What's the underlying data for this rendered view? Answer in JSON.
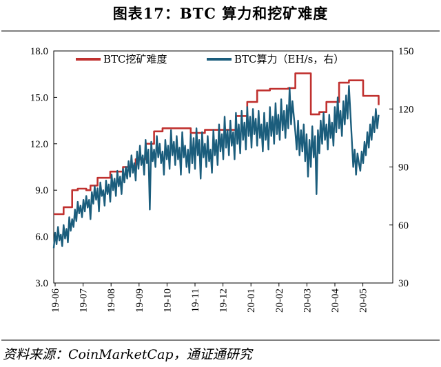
{
  "header": {
    "title": "图表17：BTC 算力和挖矿难度"
  },
  "footer": {
    "source": "资料来源：CoinMarketCap，通证通研究"
  },
  "colors": {
    "difficulty": "#c0312f",
    "hashrate": "#1b5d7c"
  },
  "chart_data": {
    "type": "line",
    "title": "图表17：BTC 算力和挖矿难度",
    "xlabel": "",
    "x_ticks": [
      "19-06",
      "19-07",
      "19-08",
      "19-09",
      "19-10",
      "19-11",
      "19-12",
      "20-01",
      "20-02",
      "20-03",
      "20-04",
      "20-05"
    ],
    "y_left": {
      "range": [
        3.0,
        18.0
      ],
      "ticks": [
        "3.0",
        "6.0",
        "9.0",
        "12.0",
        "15.0",
        "18.0"
      ]
    },
    "y_right": {
      "range": [
        30,
        150
      ],
      "ticks": [
        "30",
        "60",
        "90",
        "120",
        "150"
      ]
    },
    "x_range": [
      0,
      12.0
    ],
    "legend": {
      "placement": "top",
      "entries": [
        "BTC挖矿难度",
        "BTC算力（EH/s，右）"
      ]
    },
    "grid": false,
    "series": [
      {
        "name": "BTC挖矿难度",
        "axis": "left",
        "points": [
          [
            0.0,
            7.45
          ],
          [
            0.35,
            7.45
          ],
          [
            0.35,
            7.9
          ],
          [
            0.65,
            7.9
          ],
          [
            0.65,
            9.0
          ],
          [
            0.85,
            9.0
          ],
          [
            0.85,
            9.1
          ],
          [
            1.15,
            9.1
          ],
          [
            1.15,
            9.0
          ],
          [
            1.3,
            9.0
          ],
          [
            1.3,
            9.3
          ],
          [
            1.55,
            9.3
          ],
          [
            1.55,
            9.8
          ],
          [
            2.0,
            9.8
          ],
          [
            2.0,
            10.2
          ],
          [
            2.45,
            10.2
          ],
          [
            2.45,
            10.5
          ],
          [
            2.9,
            10.5
          ],
          [
            2.9,
            11.0
          ],
          [
            3.25,
            11.0
          ],
          [
            3.25,
            12.0
          ],
          [
            3.55,
            12.0
          ],
          [
            3.55,
            12.8
          ],
          [
            3.85,
            12.8
          ],
          [
            3.85,
            13.0
          ],
          [
            4.35,
            13.0
          ],
          [
            4.35,
            13.0
          ],
          [
            4.85,
            13.0
          ],
          [
            4.85,
            12.7
          ],
          [
            5.35,
            12.7
          ],
          [
            5.35,
            12.9
          ],
          [
            5.85,
            12.9
          ],
          [
            5.85,
            12.9
          ],
          [
            6.45,
            12.9
          ],
          [
            6.45,
            13.8
          ],
          [
            6.85,
            13.8
          ],
          [
            6.85,
            14.7
          ],
          [
            7.2,
            14.7
          ],
          [
            7.2,
            15.45
          ],
          [
            7.65,
            15.45
          ],
          [
            7.65,
            15.55
          ],
          [
            8.3,
            15.55
          ],
          [
            8.3,
            15.6
          ],
          [
            8.55,
            15.6
          ],
          [
            8.55,
            16.55
          ],
          [
            9.1,
            16.55
          ],
          [
            9.1,
            13.9
          ],
          [
            9.4,
            13.9
          ],
          [
            9.4,
            14.05
          ],
          [
            9.65,
            14.05
          ],
          [
            9.65,
            14.7
          ],
          [
            10.1,
            14.7
          ],
          [
            10.1,
            15.95
          ],
          [
            10.45,
            15.95
          ],
          [
            10.45,
            16.1
          ],
          [
            10.95,
            16.1
          ],
          [
            10.95,
            15.1
          ],
          [
            11.5,
            15.1
          ],
          [
            11.5,
            14.5
          ]
        ]
      },
      {
        "name": "BTC算力（EH/s，右）",
        "axis": "right",
        "points": [
          [
            0.0,
            48
          ],
          [
            0.05,
            56
          ],
          [
            0.1,
            50
          ],
          [
            0.15,
            59
          ],
          [
            0.2,
            52
          ],
          [
            0.25,
            55
          ],
          [
            0.3,
            49
          ],
          [
            0.35,
            60
          ],
          [
            0.4,
            53
          ],
          [
            0.45,
            58
          ],
          [
            0.5,
            51
          ],
          [
            0.55,
            64
          ],
          [
            0.6,
            57
          ],
          [
            0.65,
            63
          ],
          [
            0.7,
            59
          ],
          [
            0.75,
            68
          ],
          [
            0.8,
            62
          ],
          [
            0.85,
            72
          ],
          [
            0.9,
            66
          ],
          [
            0.95,
            70
          ],
          [
            1.0,
            64
          ],
          [
            1.05,
            73
          ],
          [
            1.1,
            67
          ],
          [
            1.15,
            75
          ],
          [
            1.2,
            69
          ],
          [
            1.25,
            73
          ],
          [
            1.3,
            63
          ],
          [
            1.35,
            77
          ],
          [
            1.4,
            71
          ],
          [
            1.45,
            80
          ],
          [
            1.5,
            73
          ],
          [
            1.55,
            79
          ],
          [
            1.6,
            67
          ],
          [
            1.65,
            82
          ],
          [
            1.7,
            75
          ],
          [
            1.75,
            78
          ],
          [
            1.8,
            70
          ],
          [
            1.85,
            83
          ],
          [
            1.9,
            76
          ],
          [
            1.95,
            81
          ],
          [
            2.0,
            72
          ],
          [
            2.05,
            86
          ],
          [
            2.1,
            78
          ],
          [
            2.15,
            84
          ],
          [
            2.2,
            75
          ],
          [
            2.25,
            88
          ],
          [
            2.3,
            80
          ],
          [
            2.35,
            85
          ],
          [
            2.4,
            76
          ],
          [
            2.45,
            89
          ],
          [
            2.5,
            82
          ],
          [
            2.55,
            90
          ],
          [
            2.6,
            84
          ],
          [
            2.65,
            93
          ],
          [
            2.7,
            85
          ],
          [
            2.75,
            96
          ],
          [
            2.8,
            87
          ],
          [
            2.85,
            92
          ],
          [
            2.9,
            83
          ],
          [
            2.95,
            98
          ],
          [
            3.0,
            89
          ],
          [
            3.05,
            101
          ],
          [
            3.1,
            91
          ],
          [
            3.15,
            96
          ],
          [
            3.2,
            86
          ],
          [
            3.25,
            104
          ],
          [
            3.3,
            92
          ],
          [
            3.35,
            99
          ],
          [
            3.4,
            68
          ],
          [
            3.45,
            103
          ],
          [
            3.5,
            93
          ],
          [
            3.55,
            99
          ],
          [
            3.6,
            90
          ],
          [
            3.65,
            106
          ],
          [
            3.7,
            95
          ],
          [
            3.75,
            102
          ],
          [
            3.8,
            92
          ],
          [
            3.85,
            98
          ],
          [
            3.9,
            86
          ],
          [
            3.95,
            104
          ],
          [
            4.0,
            94
          ],
          [
            4.05,
            101
          ],
          [
            4.1,
            89
          ],
          [
            4.15,
            109
          ],
          [
            4.2,
            96
          ],
          [
            4.25,
            103
          ],
          [
            4.3,
            91
          ],
          [
            4.35,
            106
          ],
          [
            4.4,
            94
          ],
          [
            4.45,
            100
          ],
          [
            4.5,
            86
          ],
          [
            4.55,
            108
          ],
          [
            4.6,
            95
          ],
          [
            4.65,
            101
          ],
          [
            4.7,
            90
          ],
          [
            4.75,
            99
          ],
          [
            4.8,
            87
          ],
          [
            4.85,
            107
          ],
          [
            4.9,
            92
          ],
          [
            4.95,
            105
          ],
          [
            5.0,
            89
          ],
          [
            5.05,
            110
          ],
          [
            5.1,
            96
          ],
          [
            5.15,
            104
          ],
          [
            5.2,
            84
          ],
          [
            5.25,
            108
          ],
          [
            5.3,
            95
          ],
          [
            5.35,
            102
          ],
          [
            5.4,
            90
          ],
          [
            5.45,
            106
          ],
          [
            5.5,
            93
          ],
          [
            5.55,
            99
          ],
          [
            5.6,
            87
          ],
          [
            5.65,
            109
          ],
          [
            5.7,
            96
          ],
          [
            5.75,
            104
          ],
          [
            5.8,
            91
          ],
          [
            5.85,
            112
          ],
          [
            5.9,
            98
          ],
          [
            5.95,
            107
          ],
          [
            6.0,
            94
          ],
          [
            6.05,
            116
          ],
          [
            6.1,
            100
          ],
          [
            6.15,
            109
          ],
          [
            6.2,
            96
          ],
          [
            6.25,
            114
          ],
          [
            6.3,
            101
          ],
          [
            6.35,
            108
          ],
          [
            6.4,
            94
          ],
          [
            6.45,
            118
          ],
          [
            6.5,
            102
          ],
          [
            6.55,
            112
          ],
          [
            6.6,
            97
          ],
          [
            6.65,
            119
          ],
          [
            6.7,
            104
          ],
          [
            6.75,
            113
          ],
          [
            6.8,
            99
          ],
          [
            6.85,
            121
          ],
          [
            6.9,
            106
          ],
          [
            6.95,
            116
          ],
          [
            7.0,
            100
          ],
          [
            7.05,
            120
          ],
          [
            7.1,
            107
          ],
          [
            7.15,
            115
          ],
          [
            7.2,
            101
          ],
          [
            7.25,
            119
          ],
          [
            7.3,
            105
          ],
          [
            7.35,
            112
          ],
          [
            7.4,
            98
          ],
          [
            7.45,
            118
          ],
          [
            7.5,
            104
          ],
          [
            7.55,
            113
          ],
          [
            7.6,
            99
          ],
          [
            7.65,
            121
          ],
          [
            7.7,
            106
          ],
          [
            7.75,
            116
          ],
          [
            7.8,
            102
          ],
          [
            7.85,
            123
          ],
          [
            7.9,
            107
          ],
          [
            7.95,
            117
          ],
          [
            8.0,
            104
          ],
          [
            8.05,
            125
          ],
          [
            8.1,
            109
          ],
          [
            8.15,
            119
          ],
          [
            8.2,
            105
          ],
          [
            8.25,
            122
          ],
          [
            8.3,
            110
          ],
          [
            8.35,
            131
          ],
          [
            8.4,
            112
          ],
          [
            8.45,
            124
          ],
          [
            8.5,
            116
          ],
          [
            8.55,
            108
          ],
          [
            8.6,
            99
          ],
          [
            8.65,
            114
          ],
          [
            8.7,
            96
          ],
          [
            8.75,
            109
          ],
          [
            8.8,
            98
          ],
          [
            8.85,
            112
          ],
          [
            8.9,
            93
          ],
          [
            8.95,
            107
          ],
          [
            9.0,
            85
          ],
          [
            9.05,
            104
          ],
          [
            9.1,
            90
          ],
          [
            9.15,
            111
          ],
          [
            9.2,
            95
          ],
          [
            9.25,
            106
          ],
          [
            9.3,
            76
          ],
          [
            9.35,
            109
          ],
          [
            9.4,
            97
          ],
          [
            9.45,
            114
          ],
          [
            9.5,
            102
          ],
          [
            9.55,
            118
          ],
          [
            9.6,
            104
          ],
          [
            9.65,
            112
          ],
          [
            9.7,
            99
          ],
          [
            9.75,
            117
          ],
          [
            9.8,
            105
          ],
          [
            9.85,
            113
          ],
          [
            9.9,
            101
          ],
          [
            9.95,
            121
          ],
          [
            10.0,
            108
          ],
          [
            10.05,
            126
          ],
          [
            10.1,
            110
          ],
          [
            10.15,
            119
          ],
          [
            10.2,
            106
          ],
          [
            10.25,
            124
          ],
          [
            10.3,
            112
          ],
          [
            10.35,
            127
          ],
          [
            10.4,
            115
          ],
          [
            10.45,
            132
          ],
          [
            10.5,
            118
          ],
          [
            10.55,
            104
          ],
          [
            10.6,
            90
          ],
          [
            10.65,
            99
          ],
          [
            10.7,
            86
          ],
          [
            10.75,
            97
          ],
          [
            10.8,
            92
          ],
          [
            10.85,
            88
          ],
          [
            10.9,
            98
          ],
          [
            10.95,
            92
          ],
          [
            11.0,
            103
          ],
          [
            11.05,
            96
          ],
          [
            11.1,
            108
          ],
          [
            11.15,
            100
          ],
          [
            11.2,
            112
          ],
          [
            11.25,
            104
          ],
          [
            11.3,
            116
          ],
          [
            11.35,
            108
          ],
          [
            11.4,
            120
          ],
          [
            11.45,
            110
          ],
          [
            11.5,
            117
          ]
        ]
      }
    ]
  }
}
